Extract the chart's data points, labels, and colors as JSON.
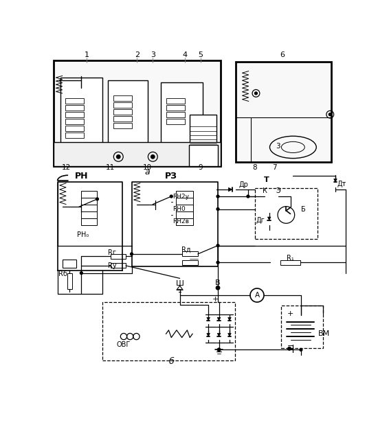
{
  "bg_color": "#ffffff",
  "fig_width": 5.66,
  "fig_height": 6.19,
  "dpi": 100,
  "labels": {
    "num_top": [
      "1",
      "2",
      "3",
      "4",
      "5",
      "6"
    ],
    "num_bot": [
      "12",
      "11",
      "10",
      "9"
    ],
    "num_right": [
      "8",
      "7"
    ],
    "letter_a": "а",
    "letter_b": "б",
    "RN": "РН",
    "RZ": "РЗ",
    "RZu": "RΗ2у",
    "RZ0": "RΗ0",
    "RZv": "RΗ2в",
    "RN0": "РН₀",
    "Dr": "Др",
    "Dg": "Дг",
    "Dt": "Дт",
    "T": "Т",
    "K": "К",
    "E": "Э",
    "Blabel": "Б",
    "Rg": "Rг",
    "Rv": "Rу",
    "Rb": "Rб",
    "Rd": "Rд",
    "R1": "R₁",
    "Sh": "Ш",
    "V": "В",
    "A": "A",
    "OVG": "ОВГ",
    "BM": "ВМ",
    "plus": "+",
    "minus": "−"
  }
}
